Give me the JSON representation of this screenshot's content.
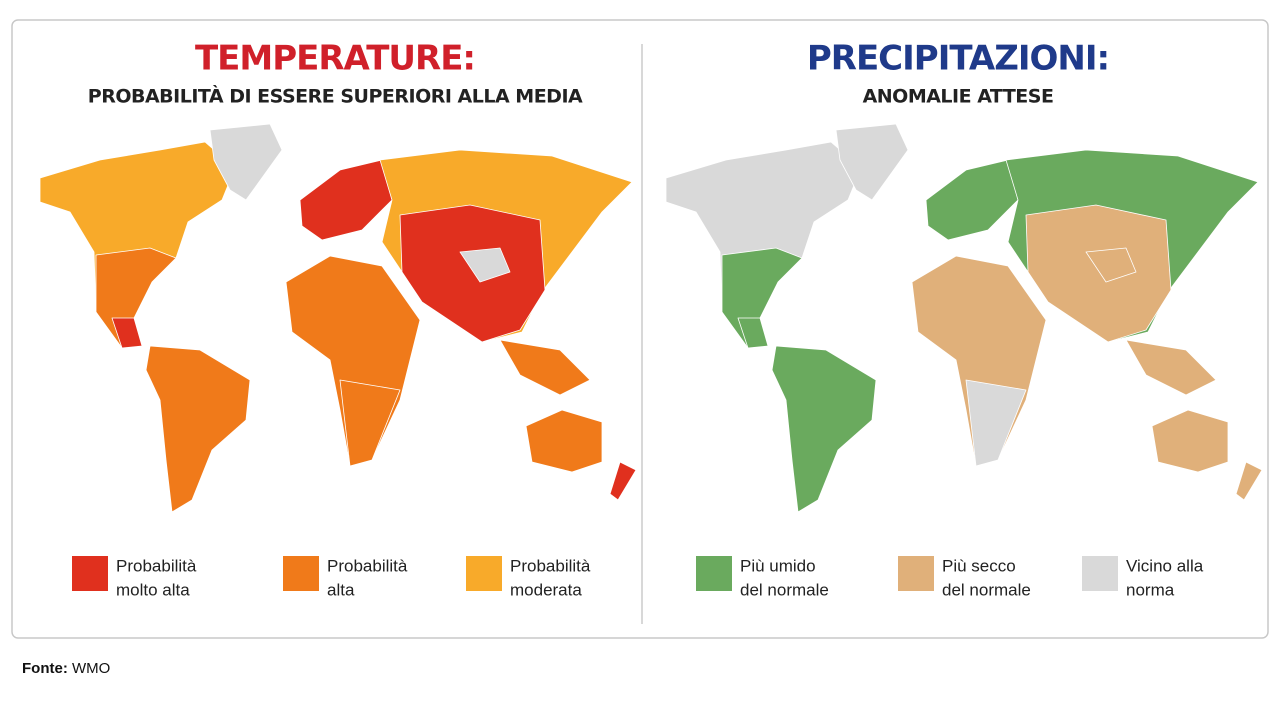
{
  "panels": [
    {
      "title": "TEMPERATURE:",
      "title_color": "#d0202a",
      "subtitle": "PROBABILITÀ DI ESSERE SUPERIORI ALLA MEDIA",
      "legend": [
        {
          "lines": [
            "Probabilità",
            "molto alta"
          ],
          "color": "#e0301e"
        },
        {
          "lines": [
            "Probabilità",
            "alta"
          ],
          "color": "#f07a1a"
        },
        {
          "lines": [
            "Probabilità",
            "moderata"
          ],
          "color": "#f8aa2a"
        }
      ]
    },
    {
      "title": "PRECIPITAZIONI:",
      "title_color": "#1f3a8a",
      "subtitle": "ANOMALIE ATTESE",
      "legend": [
        {
          "lines": [
            "Più umido",
            "del normale"
          ],
          "color": "#6aaa5e"
        },
        {
          "lines": [
            "Più secco",
            "del normale"
          ],
          "color": "#e0b07a"
        },
        {
          "lines": [
            "Vicino alla",
            "norma"
          ],
          "color": "#d9d9d9"
        }
      ]
    }
  ],
  "source": {
    "label": "Fonte:",
    "text": "WMO"
  }
}
